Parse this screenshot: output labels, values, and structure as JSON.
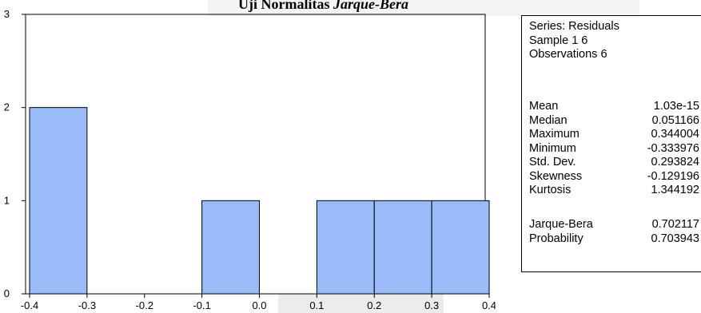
{
  "title": {
    "prefix": "Uji Normalitas",
    "italic": "Jarque-Bera"
  },
  "stats": {
    "header_lines": [
      "Series: Residuals",
      "Sample 1 6",
      "Observations 6"
    ],
    "rows": [
      {
        "label": "Mean",
        "value": "1.03e-15"
      },
      {
        "label": "Median",
        "value": "0.051166"
      },
      {
        "label": "Maximum",
        "value": "0.344004"
      },
      {
        "label": "Minimum",
        "value": "-0.333976"
      },
      {
        "label": "Std. Dev.",
        "value": "0.293824"
      },
      {
        "label": "Skewness",
        "value": "-0.129196"
      },
      {
        "label": "Kurtosis",
        "value": "1.344192"
      },
      {
        "label": "Jarque-Bera",
        "value": "0.702117"
      },
      {
        "label": "Probability",
        "value": "0.703943"
      }
    ]
  },
  "chart_data": {
    "type": "bar",
    "title": "Uji Normalitas Jarque-Bera",
    "bins": [
      {
        "from": -0.4,
        "to": -0.3,
        "count": 2
      },
      {
        "from": -0.3,
        "to": -0.2,
        "count": 0
      },
      {
        "from": -0.2,
        "to": -0.1,
        "count": 0
      },
      {
        "from": -0.1,
        "to": 0.0,
        "count": 1
      },
      {
        "from": 0.0,
        "to": 0.1,
        "count": 0
      },
      {
        "from": 0.1,
        "to": 0.2,
        "count": 1
      },
      {
        "from": 0.2,
        "to": 0.3,
        "count": 1
      },
      {
        "from": 0.3,
        "to": 0.4,
        "count": 1
      }
    ],
    "xlim": [
      -0.4,
      0.4
    ],
    "ylim": [
      0,
      3
    ],
    "x_ticks": [
      "-0.4",
      "-0.3",
      "-0.2",
      "-0.1",
      "0.0",
      "0.1",
      "0.2",
      "0.3",
      "0.4"
    ],
    "y_ticks": [
      "0",
      "1",
      "2",
      "3"
    ],
    "bar_color": "#99bbf8",
    "grid": false
  }
}
